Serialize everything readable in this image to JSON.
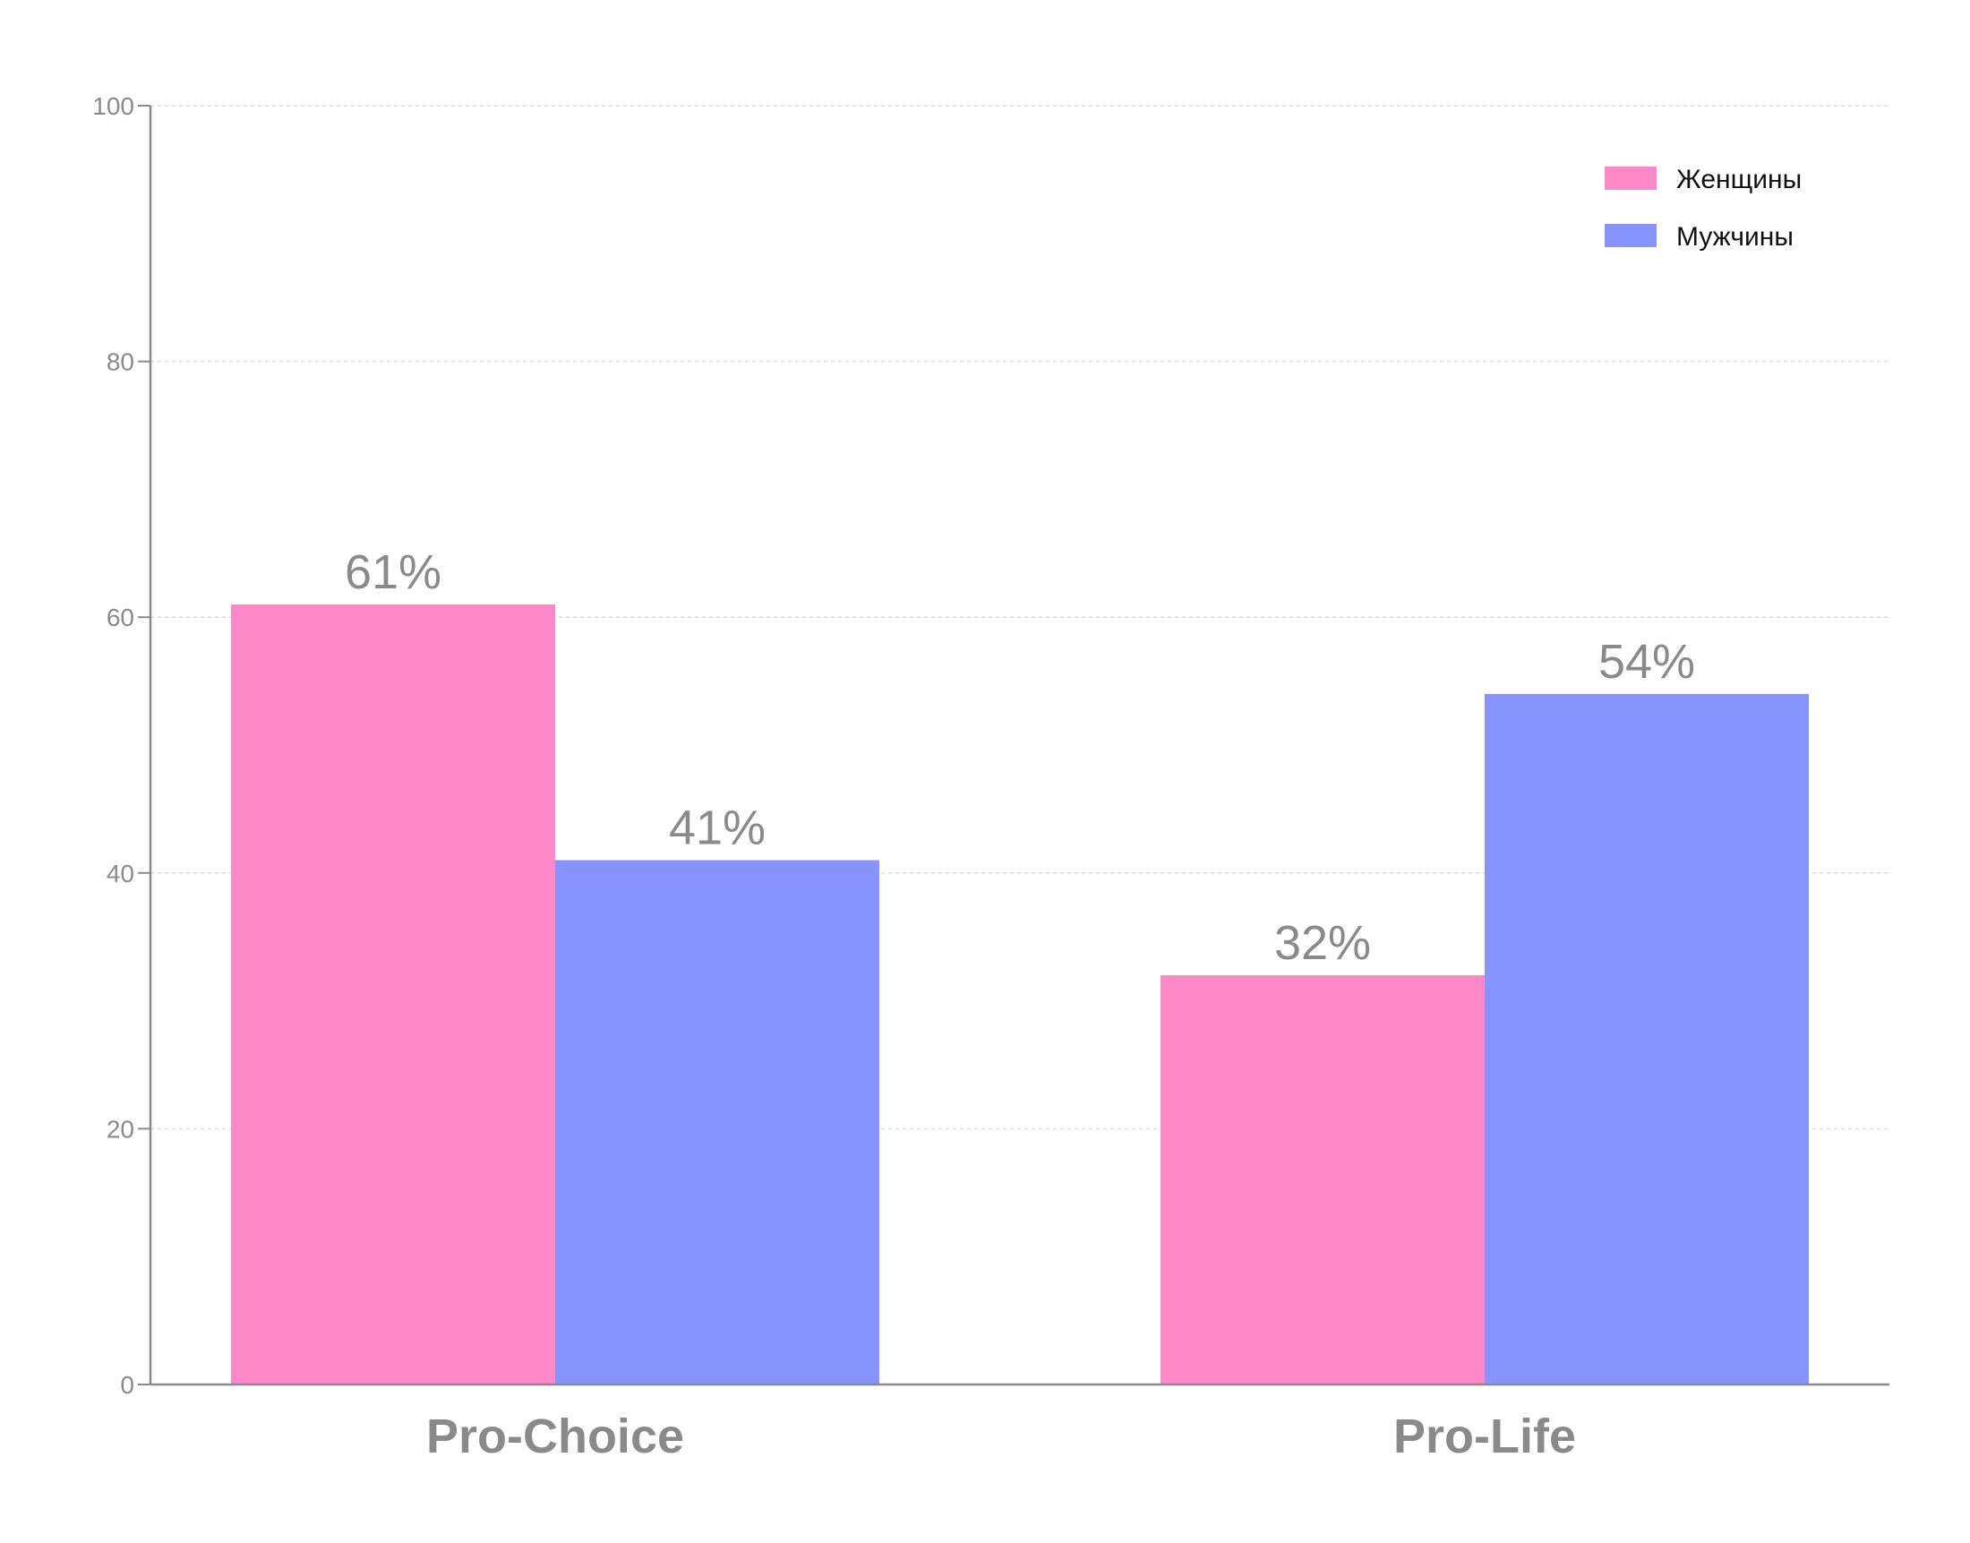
{
  "chart_data": {
    "type": "bar",
    "categories": [
      "Pro-Choice",
      "Pro-Life"
    ],
    "series": [
      {
        "name": "Женщины",
        "values": [
          61,
          32
        ],
        "labels": [
          "61%",
          "32%"
        ],
        "color": "#ff88c8"
      },
      {
        "name": "Мужчины",
        "values": [
          41,
          54
        ],
        "labels": [
          "41%",
          "54%"
        ],
        "color": "#8794fe"
      }
    ],
    "title": "",
    "xlabel": "",
    "ylabel": "",
    "ylim": [
      0,
      100
    ],
    "yticks": [
      0,
      20,
      40,
      60,
      80,
      100
    ],
    "grid": true,
    "legend_position": "top-right",
    "axis_color": "#8a8a8a",
    "grid_color": "#dddddd"
  }
}
